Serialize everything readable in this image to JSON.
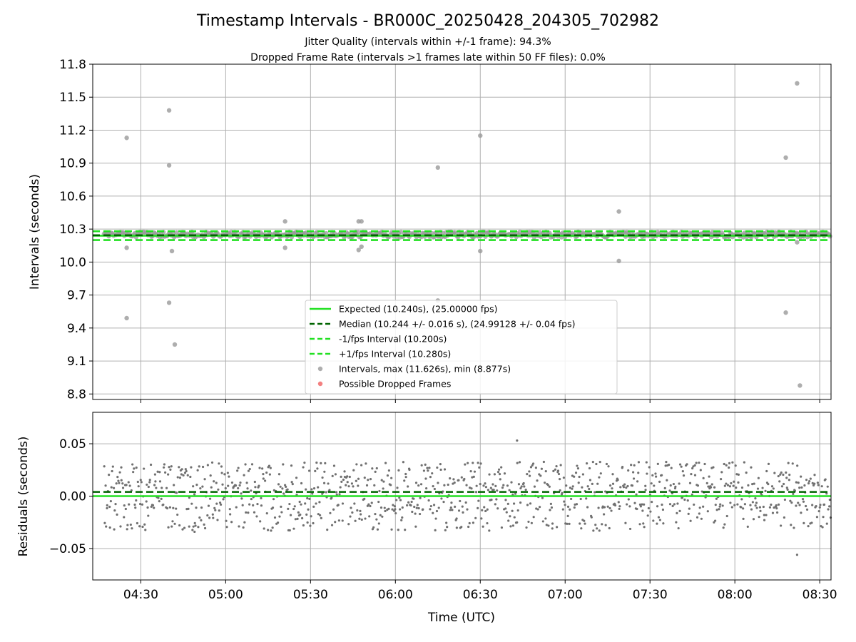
{
  "title": "Timestamp Intervals - BR000C_20250428_204305_702982",
  "subtitle_1": "Jitter Quality (intervals within +/-1 frame): 94.3%",
  "subtitle_2": "Dropped Frame Rate (intervals >1 frames late within 50 FF files): 0.0%",
  "colors": {
    "expected": "#22e022",
    "median": "#006400",
    "fps_band": "#22e022",
    "points": "#9a9a9a",
    "residual_points": "#707070",
    "dropped": "#f06060",
    "grid": "#b0b0b0"
  },
  "chart_data": [
    {
      "type": "scatter",
      "name": "intervals",
      "ylabel": "Intervals (seconds)",
      "xlim": [
        "04:13",
        "08:34"
      ],
      "ylim": [
        8.75,
        11.8
      ],
      "yticks": [
        "8.8",
        "9.1",
        "9.4",
        "9.7",
        "10.0",
        "10.3",
        "10.6",
        "10.9",
        "11.2",
        "11.5",
        "11.8"
      ],
      "grid": true,
      "reference_lines": [
        {
          "name": "expected",
          "value": 10.24,
          "style": "solid"
        },
        {
          "name": "median",
          "value": 10.244,
          "style": "dashed"
        },
        {
          "name": "minus_1fps",
          "value": 10.2,
          "style": "dashed"
        },
        {
          "name": "plus_1fps",
          "value": 10.28,
          "style": "dashed"
        }
      ],
      "band_center": 10.25,
      "band_jitter": 0.025,
      "cluster_range": [
        "04:17",
        "08:34"
      ],
      "outliers": [
        {
          "x": "04:25",
          "y": 11.13
        },
        {
          "x": "04:25",
          "y": 10.13
        },
        {
          "x": "04:25",
          "y": 9.49
        },
        {
          "x": "04:40",
          "y": 11.38
        },
        {
          "x": "04:40",
          "y": 10.88
        },
        {
          "x": "04:40",
          "y": 9.63
        },
        {
          "x": "04:41",
          "y": 10.1
        },
        {
          "x": "04:42",
          "y": 9.25
        },
        {
          "x": "05:21",
          "y": 10.37
        },
        {
          "x": "05:21",
          "y": 10.13
        },
        {
          "x": "05:47",
          "y": 10.37
        },
        {
          "x": "05:48",
          "y": 10.37
        },
        {
          "x": "05:47",
          "y": 10.11
        },
        {
          "x": "05:48",
          "y": 10.14
        },
        {
          "x": "06:15",
          "y": 10.86
        },
        {
          "x": "06:15",
          "y": 9.65
        },
        {
          "x": "06:30",
          "y": 11.15
        },
        {
          "x": "06:30",
          "y": 10.1
        },
        {
          "x": "07:19",
          "y": 10.46
        },
        {
          "x": "07:19",
          "y": 10.01
        },
        {
          "x": "08:18",
          "y": 10.95
        },
        {
          "x": "08:18",
          "y": 9.54
        },
        {
          "x": "08:22",
          "y": 11.626
        },
        {
          "x": "08:22",
          "y": 10.18
        },
        {
          "x": "08:23",
          "y": 8.877
        }
      ],
      "legend": [
        {
          "label": "Expected (10.240s), (25.00000 fps)",
          "style": "solid",
          "color": "#22e022"
        },
        {
          "label": "Median (10.244 +/- 0.016 s), (24.99128 +/- 0.04 fps)",
          "style": "dashed",
          "color": "#006400"
        },
        {
          "label": "-1/fps Interval (10.200s)",
          "style": "dashed",
          "color": "#22e022"
        },
        {
          "label": "+1/fps Interval (10.280s)",
          "style": "dashed",
          "color": "#22e022"
        },
        {
          "label": "Intervals, max (11.626s), min (8.877s)",
          "style": "marker",
          "color": "#9a9a9a"
        },
        {
          "label": "Possible Dropped Frames",
          "style": "marker",
          "color": "#f06060"
        }
      ],
      "legend_position": "lower-center"
    },
    {
      "type": "scatter",
      "name": "residuals",
      "ylabel": "Residuals (seconds)",
      "xlabel": "Time (UTC)",
      "xlim": [
        "04:13",
        "08:34"
      ],
      "ylim": [
        -0.08,
        0.08
      ],
      "yticks": [
        "−0.05",
        "0.00",
        "0.05"
      ],
      "ytick_values": [
        -0.05,
        0.0,
        0.05
      ],
      "xticks": [
        "04:30",
        "05:00",
        "05:30",
        "06:00",
        "06:30",
        "07:00",
        "07:30",
        "08:00",
        "08:30"
      ],
      "grid": true,
      "reference_lines": [
        {
          "name": "zero",
          "value": 0.0,
          "style": "solid"
        },
        {
          "name": "median_offset",
          "value": 0.004,
          "style": "dashed"
        }
      ],
      "value_range": [
        -0.056,
        0.053
      ],
      "cluster_levels": [
        -0.02,
        0.0,
        0.02
      ],
      "cluster_range": [
        "04:17",
        "08:34"
      ]
    }
  ]
}
